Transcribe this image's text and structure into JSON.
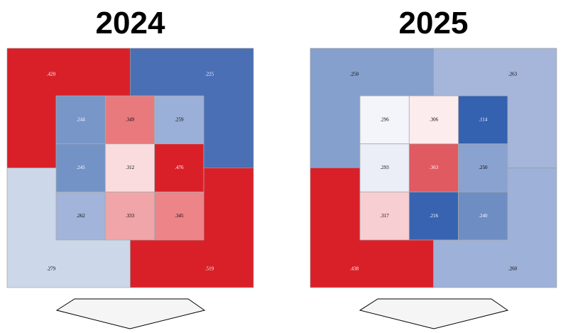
{
  "chart_data": [
    {
      "type": "strike-zone",
      "title": "2024",
      "values": [
        0.244,
        0.349,
        0.259,
        0.245,
        0.312,
        0.476,
        0.262,
        0.333,
        0.345
      ],
      "value_labels": [
        ".244",
        ".349",
        ".259",
        ".245",
        ".312",
        ".476",
        ".262",
        ".333",
        ".345"
      ],
      "colors": [
        "#7896c8",
        "#e87a7e",
        "#9bb0d8",
        "#7393c6",
        "#fadcdf",
        "#d92029",
        "#a2b4d9",
        "#f0a5a8",
        "#ec8488"
      ],
      "outer_values": [
        0.42,
        0.225,
        0.279,
        0.519
      ],
      "outer_value_labels": [
        ".420",
        ".225",
        ".279",
        ".519"
      ],
      "outer_colors": [
        "#d92029",
        "#4a6fb5",
        "#ccd7e9",
        "#d92029"
      ]
    },
    {
      "type": "strike-zone",
      "title": "2025",
      "values": [
        0.296,
        0.306,
        0.114,
        0.293,
        0.363,
        0.25,
        0.317,
        0.216,
        0.24
      ],
      "value_labels": [
        ".296",
        ".306",
        ".114",
        ".293",
        ".363",
        ".250",
        ".317",
        ".216",
        ".240"
      ],
      "colors": [
        "#f4f5fa",
        "#fcecee",
        "#3461b0",
        "#ebeef7",
        "#e05a62",
        "#8aa2cf",
        "#f7ced2",
        "#3863b1",
        "#6d8dc3"
      ],
      "outer_values": [
        0.25,
        0.263,
        0.438,
        0.26
      ],
      "outer_value_labels": [
        ".250",
        ".263",
        ".438",
        ".260"
      ],
      "outer_colors": [
        "#86a0ce",
        "#a5b6da",
        "#d92029",
        "#9eb1d8"
      ]
    }
  ]
}
